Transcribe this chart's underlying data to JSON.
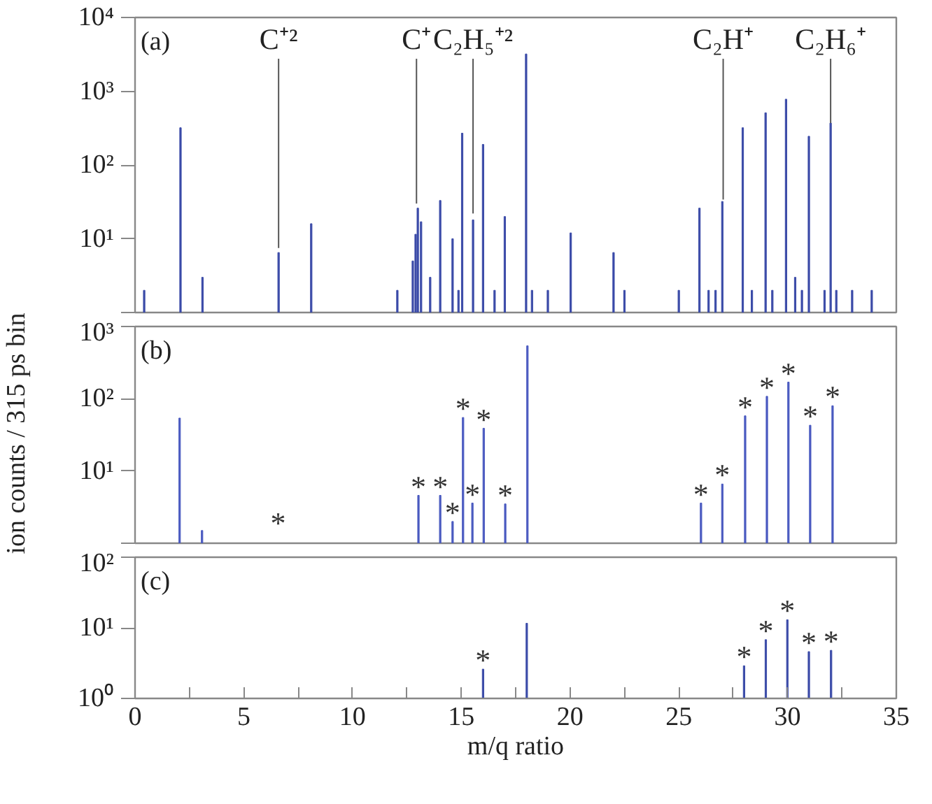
{
  "chart_data": [
    {
      "type": "bar",
      "title": "(a)",
      "color": "#3b4ba8",
      "xlim": [
        0,
        35
      ],
      "ylim": [
        1,
        10000
      ],
      "log": true,
      "grid": false,
      "tick_labels": "y",
      "yticks": [
        {
          "value": 1,
          "label": null
        },
        {
          "value": 10,
          "label": "10¹"
        },
        {
          "value": 100,
          "label": "10²"
        },
        {
          "value": 1000,
          "label": "10³"
        },
        {
          "value": 10000,
          "label": "10⁴"
        }
      ],
      "x": [
        0.42,
        2.09,
        3.1,
        6.6,
        8.1,
        12.06,
        12.77,
        12.9,
        13.0,
        13.15,
        13.57,
        14.03,
        14.6,
        14.87,
        15.04,
        15.54,
        16.0,
        16.53,
        17.0,
        17.98,
        18.25,
        18.98,
        20.03,
        22.0,
        22.5,
        25.0,
        25.95,
        26.37,
        26.69,
        27.0,
        27.94,
        28.36,
        28.99,
        29.3,
        29.93,
        30.35,
        30.66,
        30.98,
        31.7,
        31.98,
        32.24,
        32.97,
        33.87
      ],
      "values": [
        2,
        320,
        3,
        6.5,
        16,
        2,
        5,
        11.5,
        26,
        17,
        3,
        33,
        10,
        2,
        270,
        18,
        190,
        2,
        20,
        3200,
        2,
        2,
        12,
        6.5,
        2,
        2,
        26,
        2,
        2,
        32,
        320,
        2,
        510,
        2,
        780,
        3,
        2,
        245,
        2,
        370,
        2,
        2,
        2
      ],
      "annotations": [
        {
          "text": "C⁺²",
          "x": 6.6,
          "y": 7.5
        },
        {
          "text": "C⁺",
          "x": 12.94,
          "y": 30
        },
        {
          "text": "C₂H₅⁺²",
          "x": 15.54,
          "y": 22
        },
        {
          "text": "C₂H⁺",
          "x": 27.04,
          "y": 34
        },
        {
          "text": "C₂H₆⁺",
          "x": 31.98,
          "y": 370
        }
      ]
    },
    {
      "type": "bar",
      "title": "(b)",
      "color": "#4a5ac0",
      "xlim": [
        0,
        35
      ],
      "ylim": [
        1,
        1000
      ],
      "log": true,
      "grid": false,
      "tick_labels": "y",
      "ylabel": "ion counts / 315 ps bin",
      "yticks": [
        {
          "value": 1,
          "label": null
        },
        {
          "value": 10,
          "label": "10¹"
        },
        {
          "value": 100,
          "label": "10²"
        },
        {
          "value": 1000,
          "label": "10³"
        }
      ],
      "x": [
        2.05,
        3.08,
        13.03,
        14.03,
        14.6,
        15.08,
        15.51,
        16.03,
        17.02,
        18.04,
        26.02,
        27.0,
        28.05,
        29.05,
        30.04,
        31.04,
        32.07
      ],
      "values": [
        54,
        1.5,
        4.6,
        4.6,
        2.0,
        55,
        3.6,
        39,
        3.5,
        540,
        3.6,
        6.6,
        58,
        108,
        170,
        43,
        80
      ],
      "annotations": [
        "*",
        {
          "text": "*",
          "x": 13.03,
          "y": 4.6
        },
        {
          "text": "*",
          "x": 14.03,
          "y": 4.6
        },
        {
          "text": "*",
          "x": 14.6,
          "y": 2.0
        },
        {
          "text": "*",
          "x": 15.08,
          "y": 55
        },
        {
          "text": "*",
          "x": 15.51,
          "y": 3.6
        },
        {
          "text": "*",
          "x": 16.03,
          "y": 39
        },
        {
          "text": "*",
          "x": 17.02,
          "y": 3.5
        },
        {
          "text": "*",
          "x": 26.02,
          "y": 3.6
        },
        {
          "text": "*",
          "x": 27.0,
          "y": 6.6
        },
        {
          "text": "*",
          "x": 28.05,
          "y": 58
        },
        {
          "text": "*",
          "x": 29.05,
          "y": 108
        },
        {
          "text": "*",
          "x": 30.04,
          "y": 170
        },
        {
          "text": "*",
          "x": 31.04,
          "y": 43
        },
        {
          "text": "*",
          "x": 32.07,
          "y": 80
        }
      ]
    },
    {
      "type": "bar",
      "title": "(c)",
      "color": "#3b4ba8",
      "xlim": [
        0,
        35
      ],
      "ylim": [
        1,
        100
      ],
      "log": true,
      "grid": false,
      "xlabel": "m/q ratio",
      "xticks": [
        0,
        {
          "value": 2.5,
          "label": null
        },
        5,
        {
          "value": 7.5,
          "label": null
        },
        10,
        {
          "value": 12.5,
          "label": null
        },
        15,
        {
          "value": 17.5,
          "label": null
        },
        20,
        {
          "value": 22.5,
          "label": null
        },
        25,
        {
          "value": 27.5,
          "label": null
        },
        30,
        {
          "value": 32.5,
          "label": null
        },
        35
      ],
      "yticks": [
        {
          "value": 1,
          "label": "10⁰"
        },
        {
          "value": 10,
          "label": "10¹"
        },
        {
          "value": 100,
          "label": "10²"
        }
      ],
      "x": [
        16.0,
        18.01,
        28.0,
        29.0,
        29.99,
        30.98,
        32.0
      ],
      "values": [
        2.6,
        11.6,
        2.9,
        6.8,
        13,
        4.6,
        4.8
      ],
      "annotations": [
        {
          "text": "*",
          "x": 16.0,
          "y": 2.6
        },
        {
          "text": "*",
          "x": 28.0,
          "y": 2.9
        },
        {
          "text": "*",
          "x": 29.0,
          "y": 6.8
        },
        {
          "text": "*",
          "x": 29.99,
          "y": 13
        },
        {
          "text": "*",
          "x": 30.98,
          "y": 4.6
        },
        {
          "text": "*",
          "x": 32.0,
          "y": 4.8
        }
      ]
    }
  ]
}
